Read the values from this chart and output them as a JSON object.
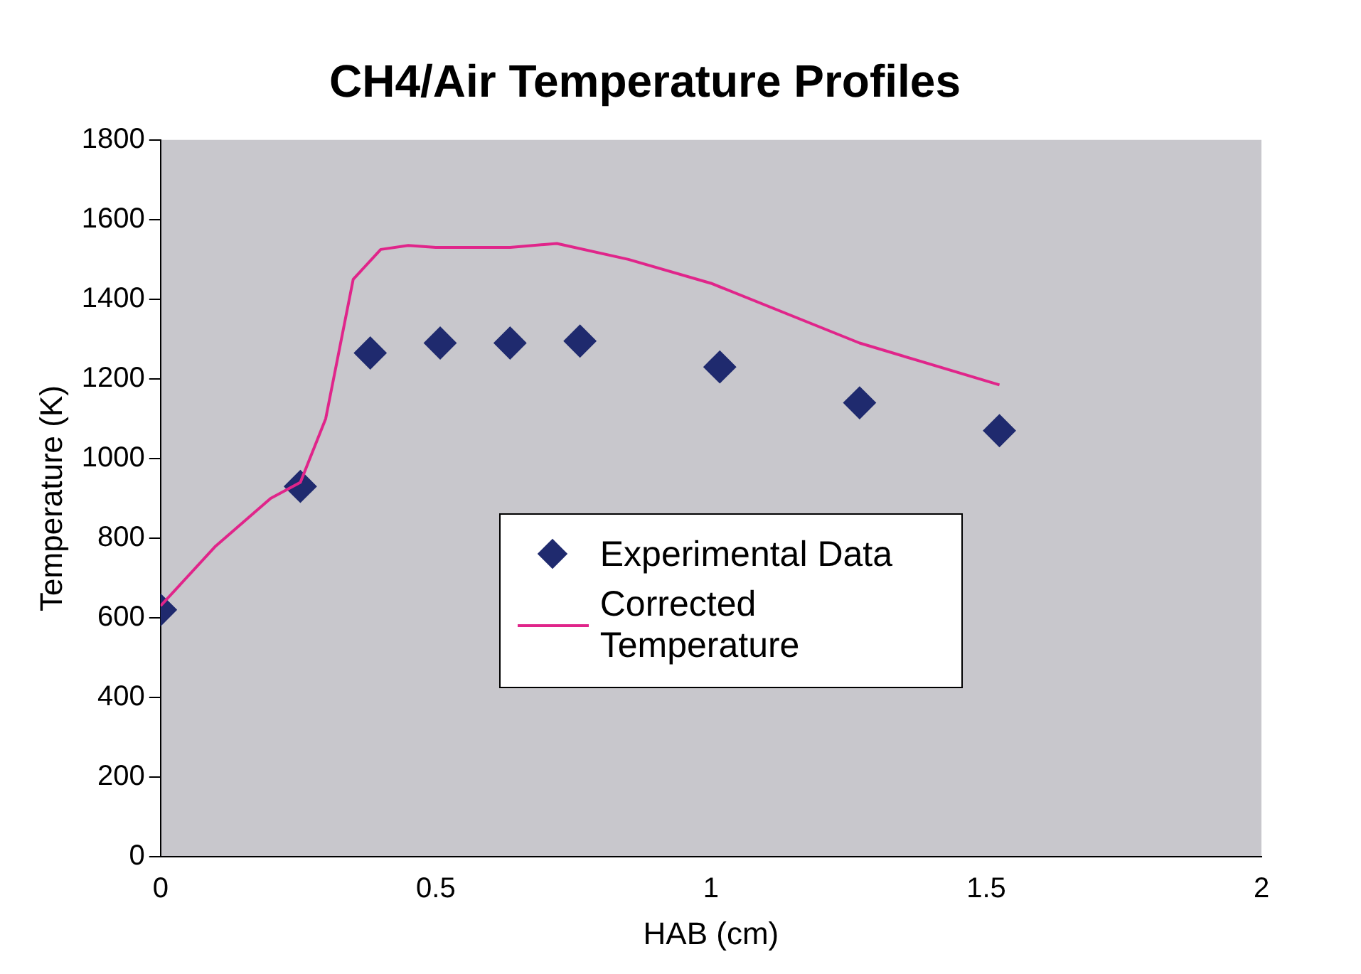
{
  "chart_data": {
    "type": "scatter",
    "title": "CH4/Air Temperature Profiles",
    "xlabel": "HAB (cm)",
    "ylabel": "Temperature (K)",
    "xlim": [
      0,
      2
    ],
    "xticks": [
      0,
      0.5,
      1,
      1.5,
      2
    ],
    "ylim": [
      0,
      1800
    ],
    "yticks": [
      0,
      200,
      400,
      600,
      800,
      1000,
      1200,
      1400,
      1600,
      1800
    ],
    "grid": false,
    "legend": "right",
    "series": [
      {
        "name": "Experimental Data",
        "marker": "diamond",
        "color": "#1f2a6e",
        "x": [
          0,
          0.254,
          0.381,
          0.508,
          0.635,
          0.762,
          1.016,
          1.27,
          1.524
        ],
        "values": [
          620,
          930,
          1265,
          1290,
          1290,
          1295,
          1230,
          1140,
          1070
        ]
      },
      {
        "name": "Corrected Temperature",
        "type": "line",
        "marker": "none",
        "color": "#e0258a",
        "x": [
          0,
          0.1,
          0.2,
          0.254,
          0.3,
          0.35,
          0.4,
          0.45,
          0.5,
          0.635,
          0.72,
          0.85,
          1.0,
          1.27,
          1.524
        ],
        "values": [
          630,
          780,
          900,
          940,
          1100,
          1450,
          1525,
          1535,
          1530,
          1530,
          1540,
          1500,
          1440,
          1290,
          1185
        ]
      }
    ]
  }
}
